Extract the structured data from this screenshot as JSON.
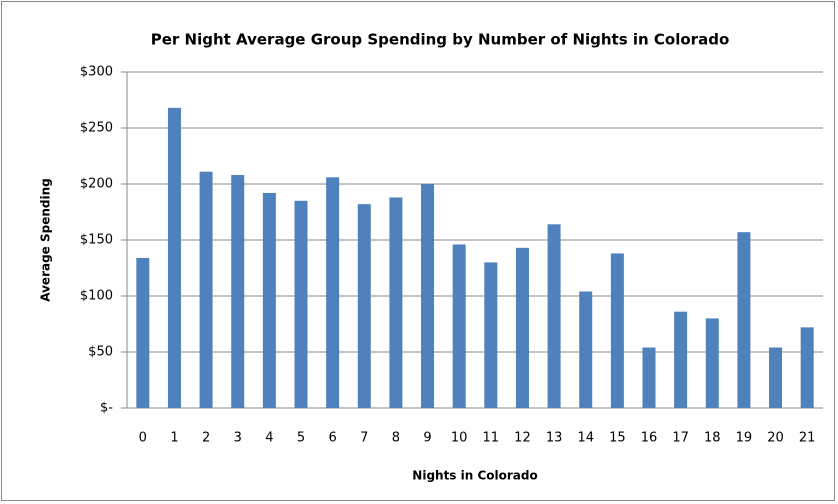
{
  "chart_data": {
    "type": "bar",
    "title": "Per Night Average Group Spending by Number of Nights in Colorado",
    "x_label": "Nights in Colorado",
    "y_label": "Average Spending",
    "categories": [
      "0",
      "1",
      "2",
      "3",
      "4",
      "5",
      "6",
      "7",
      "8",
      "9",
      "10",
      "11",
      "12",
      "13",
      "14",
      "15",
      "16",
      "17",
      "18",
      "19",
      "20",
      "21"
    ],
    "values": [
      134,
      268,
      211,
      208,
      192,
      185,
      206,
      182,
      188,
      200,
      146,
      130,
      143,
      164,
      104,
      138,
      54,
      86,
      80,
      157,
      54,
      72
    ],
    "color": "#4f81bd",
    "ylim": [
      0,
      300
    ],
    "yticks": [
      {
        "value": 0,
        "label": "$-"
      },
      {
        "value": 50,
        "label": "$50"
      },
      {
        "value": 100,
        "label": "$100"
      },
      {
        "value": 150,
        "label": "$150"
      },
      {
        "value": 200,
        "label": "$200"
      },
      {
        "value": 250,
        "label": "$250"
      },
      {
        "value": 300,
        "label": "$300"
      }
    ],
    "grid": true
  }
}
